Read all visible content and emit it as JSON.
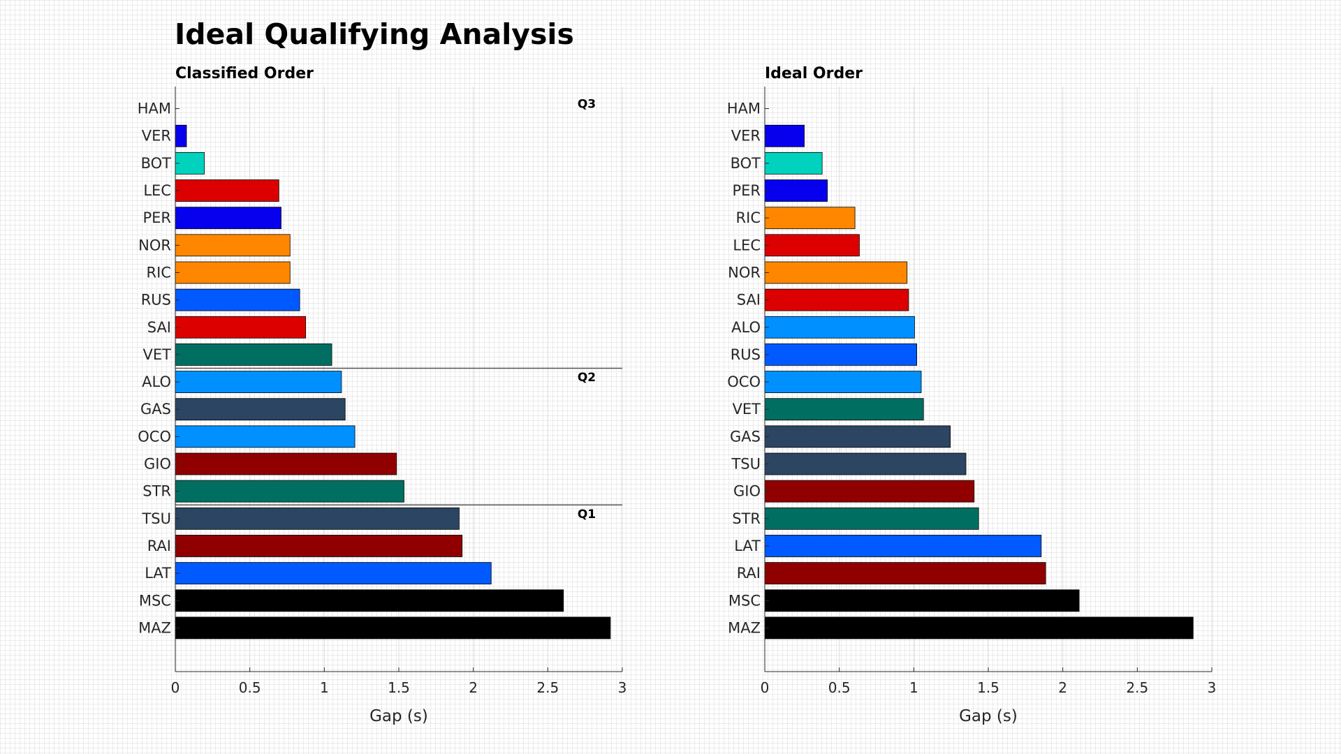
{
  "title": "Ideal Qualifying Analysis",
  "chart_data": [
    {
      "type": "bar",
      "orientation": "horizontal",
      "title": "Classified Order",
      "xlabel": "Gap (s)",
      "ylabel": "",
      "xlim": [
        0,
        3
      ],
      "xticks": [
        0,
        0.5,
        1,
        1.5,
        2,
        2.5,
        3
      ],
      "xtick_labels": [
        "0",
        "0.5",
        "1",
        "1.5",
        "2",
        "2.5",
        "3"
      ],
      "grid": true,
      "categories": [
        "HAM",
        "VER",
        "BOT",
        "LEC",
        "PER",
        "NOR",
        "RIC",
        "RUS",
        "SAI",
        "VET",
        "ALO",
        "GAS",
        "OCO",
        "GIO",
        "STR",
        "TSU",
        "RAI",
        "LAT",
        "MSC",
        "MAZ"
      ],
      "values": [
        0,
        0.075,
        0.195,
        0.695,
        0.71,
        0.77,
        0.77,
        0.835,
        0.875,
        1.05,
        1.115,
        1.14,
        1.205,
        1.485,
        1.535,
        1.905,
        1.925,
        2.12,
        2.605,
        2.92
      ],
      "colors": [
        "#00d2be",
        "#0600ef",
        "#00d2be",
        "#dc0000",
        "#0600ef",
        "#ff8700",
        "#ff8700",
        "#005aff",
        "#dc0000",
        "#006f62",
        "#0090ff",
        "#2b4562",
        "#0090ff",
        "#900000",
        "#006f62",
        "#2b4562",
        "#900000",
        "#005aff",
        "#000000",
        "#000000"
      ],
      "segments": [
        {
          "label": "Q3",
          "first_row": 0
        },
        {
          "label": "Q2",
          "first_row": 10
        },
        {
          "label": "Q1",
          "first_row": 15
        }
      ]
    },
    {
      "type": "bar",
      "orientation": "horizontal",
      "title": "Ideal Order",
      "xlabel": "Gap (s)",
      "ylabel": "",
      "xlim": [
        0,
        3
      ],
      "xticks": [
        0,
        0.5,
        1,
        1.5,
        2,
        2.5,
        3
      ],
      "xtick_labels": [
        "0",
        "0.5",
        "1",
        "1.5",
        "2",
        "2.5",
        "3"
      ],
      "grid": true,
      "categories": [
        "HAM",
        "VER",
        "BOT",
        "PER",
        "RIC",
        "LEC",
        "NOR",
        "SAI",
        "ALO",
        "RUS",
        "OCO",
        "VET",
        "GAS",
        "TSU",
        "GIO",
        "STR",
        "LAT",
        "RAI",
        "MSC",
        "MAZ"
      ],
      "values": [
        0,
        0.265,
        0.385,
        0.42,
        0.605,
        0.635,
        0.955,
        0.965,
        1.005,
        1.02,
        1.05,
        1.065,
        1.245,
        1.35,
        1.405,
        1.435,
        1.855,
        1.885,
        2.11,
        2.875
      ],
      "colors": [
        "#00d2be",
        "#0600ef",
        "#00d2be",
        "#0600ef",
        "#ff8700",
        "#dc0000",
        "#ff8700",
        "#dc0000",
        "#0090ff",
        "#005aff",
        "#0090ff",
        "#006f62",
        "#2b4562",
        "#2b4562",
        "#900000",
        "#006f62",
        "#005aff",
        "#900000",
        "#000000",
        "#000000"
      ]
    }
  ],
  "style": {
    "axis_color": "#262626",
    "grid_color": "#dcdcdc",
    "bar_edge_color": "#000000",
    "divider_color": "#555555"
  }
}
